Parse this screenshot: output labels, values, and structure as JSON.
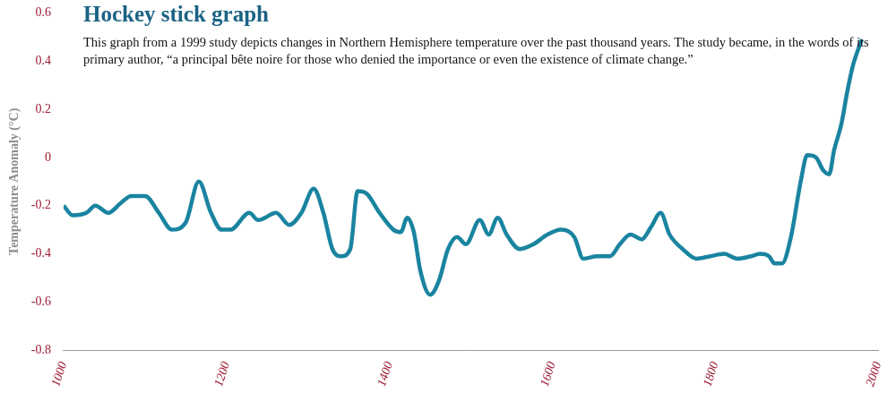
{
  "chart_data": {
    "type": "line",
    "title": "Hockey stick graph",
    "subtitle": "This graph from a 1999 study depicts changes in Northern Hemisphere temperature over the past thousand years. The study became, in the words of its primary author, “a principal bête noire for those who denied the importance or even the existence of climate change.”",
    "y_label": "Temperature Anomaly (°C)",
    "x": [
      1000,
      1011,
      1028,
      1039,
      1055,
      1070,
      1083,
      1100,
      1117,
      1133,
      1150,
      1166,
      1181,
      1194,
      1205,
      1228,
      1239,
      1261,
      1277,
      1292,
      1307,
      1319,
      1330,
      1341,
      1352,
      1361,
      1372,
      1388,
      1405,
      1414,
      1422,
      1430,
      1438,
      1450,
      1461,
      1472,
      1483,
      1494,
      1511,
      1522,
      1533,
      1544,
      1560,
      1577,
      1594,
      1611,
      1627,
      1638,
      1655,
      1671,
      1683,
      1696,
      1710,
      1721,
      1733,
      1744,
      1760,
      1777,
      1794,
      1811,
      1827,
      1844,
      1855,
      1866,
      1873,
      1882,
      1893,
      1905,
      1913,
      1924,
      1932,
      1940,
      1946,
      1955,
      1962,
      1969,
      1980
    ],
    "values": [
      -0.2,
      -0.24,
      -0.23,
      -0.2,
      -0.23,
      -0.19,
      -0.16,
      -0.16,
      -0.23,
      -0.3,
      -0.27,
      -0.1,
      -0.23,
      -0.3,
      -0.3,
      -0.23,
      -0.26,
      -0.23,
      -0.28,
      -0.23,
      -0.13,
      -0.23,
      -0.38,
      -0.41,
      -0.38,
      -0.14,
      -0.15,
      -0.23,
      -0.3,
      -0.31,
      -0.25,
      -0.31,
      -0.47,
      -0.57,
      -0.51,
      -0.38,
      -0.33,
      -0.36,
      -0.26,
      -0.32,
      -0.25,
      -0.32,
      -0.38,
      -0.36,
      -0.32,
      -0.3,
      -0.33,
      -0.42,
      -0.41,
      -0.41,
      -0.36,
      -0.32,
      -0.34,
      -0.29,
      -0.23,
      -0.32,
      -0.38,
      -0.42,
      -0.41,
      -0.4,
      -0.42,
      -0.41,
      -0.4,
      -0.41,
      -0.44,
      -0.44,
      -0.33,
      -0.1,
      0.01,
      0.0,
      -0.05,
      -0.07,
      0.03,
      0.14,
      0.27,
      0.38,
      0.49
    ],
    "color": "#1a84a0",
    "xlim": [
      1000,
      2000
    ],
    "xticks": [
      1000,
      1200,
      1400,
      1600,
      1800,
      2000
    ],
    "ylim": [
      -0.8,
      0.6
    ],
    "yticks": [
      -0.8,
      -0.6,
      -0.4,
      -0.2,
      0,
      0.2,
      0.4,
      0.6
    ],
    "grid": false
  }
}
